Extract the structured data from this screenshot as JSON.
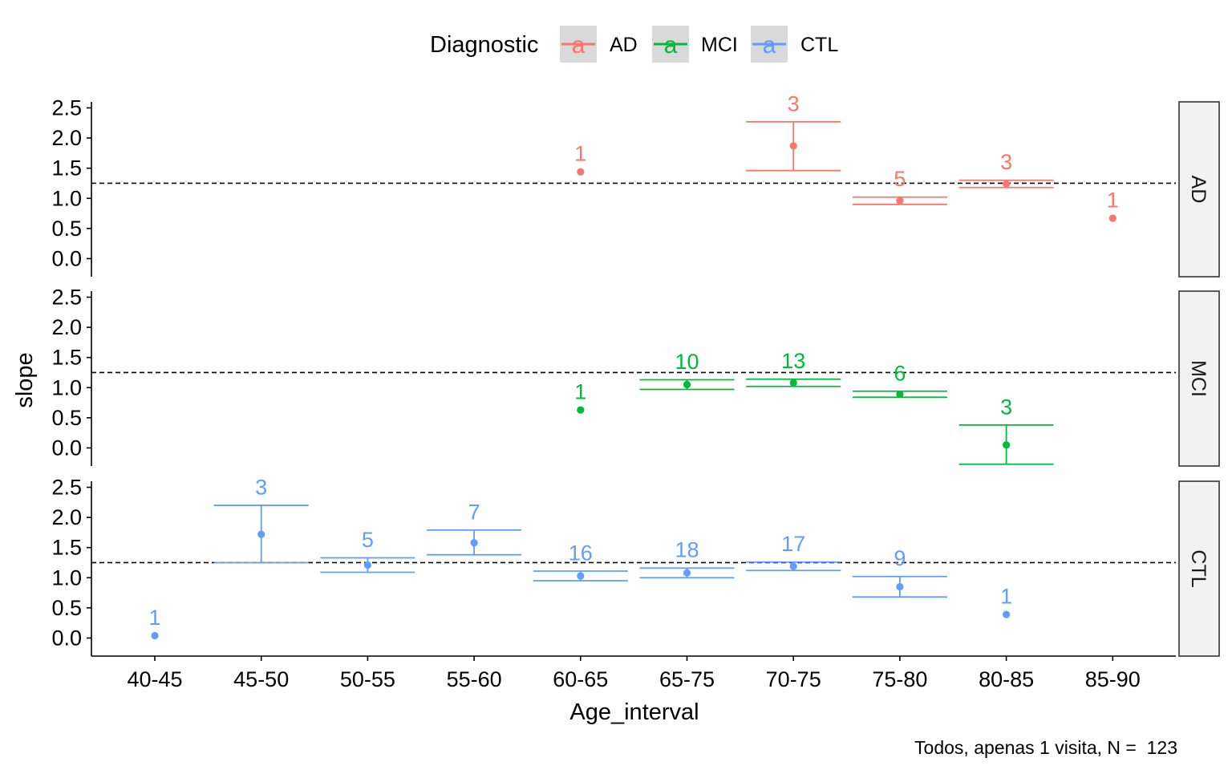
{
  "chart_data": {
    "type": "scatter",
    "title": "",
    "xlabel": "Age_interval",
    "ylabel": "slope",
    "caption": "Todos, apenas 1 visita, N =  123",
    "categories": [
      "40-45",
      "45-50",
      "50-55",
      "55-60",
      "60-65",
      "65-75",
      "70-75",
      "75-80",
      "80-85",
      "85-90"
    ],
    "ylim": [
      -0.3,
      2.6
    ],
    "yticks": [
      "0.0",
      "0.5",
      "1.0",
      "1.5",
      "2.0",
      "2.5"
    ],
    "reference_line": 1.25,
    "legend": {
      "title": "Diagnostic",
      "position": "top",
      "key_glyph": "a",
      "entries": [
        {
          "label": "AD",
          "color": "#F8766D"
        },
        {
          "label": "MCI",
          "color": "#00BA38"
        },
        {
          "label": "CTL",
          "color": "#619CFF"
        }
      ]
    },
    "panels": [
      {
        "strip": "AD",
        "color": "#F8766D",
        "points": [
          {
            "x": "60-65",
            "y": 1.44,
            "n": "1",
            "lo": null,
            "hi": null
          },
          {
            "x": "70-75",
            "y": 1.87,
            "n": "3",
            "lo": 1.46,
            "hi": 2.27
          },
          {
            "x": "75-80",
            "y": 0.96,
            "n": "5",
            "lo": 0.9,
            "hi": 1.02
          },
          {
            "x": "80-85",
            "y": 1.24,
            "n": "3",
            "lo": 1.18,
            "hi": 1.3
          },
          {
            "x": "85-90",
            "y": 0.67,
            "n": "1",
            "lo": null,
            "hi": null
          }
        ]
      },
      {
        "strip": "MCI",
        "color": "#00BA38",
        "points": [
          {
            "x": "60-65",
            "y": 0.63,
            "n": "1",
            "lo": null,
            "hi": null
          },
          {
            "x": "65-75",
            "y": 1.05,
            "n": "10",
            "lo": 0.97,
            "hi": 1.13
          },
          {
            "x": "70-75",
            "y": 1.08,
            "n": "13",
            "lo": 1.02,
            "hi": 1.14
          },
          {
            "x": "75-80",
            "y": 0.89,
            "n": "6",
            "lo": 0.84,
            "hi": 0.94
          },
          {
            "x": "80-85",
            "y": 0.05,
            "n": "3",
            "lo": -0.27,
            "hi": 0.38
          }
        ]
      },
      {
        "strip": "CTL",
        "color": "#619CFF",
        "points": [
          {
            "x": "40-45",
            "y": 0.04,
            "n": "1",
            "lo": null,
            "hi": null
          },
          {
            "x": "45-50",
            "y": 1.72,
            "n": "3",
            "lo": 1.25,
            "hi": 2.2
          },
          {
            "x": "50-55",
            "y": 1.21,
            "n": "5",
            "lo": 1.09,
            "hi": 1.33
          },
          {
            "x": "55-60",
            "y": 1.58,
            "n": "7",
            "lo": 1.38,
            "hi": 1.79
          },
          {
            "x": "60-65",
            "y": 1.03,
            "n": "16",
            "lo": 0.95,
            "hi": 1.11
          },
          {
            "x": "65-75",
            "y": 1.08,
            "n": "18",
            "lo": 1.0,
            "hi": 1.16
          },
          {
            "x": "70-75",
            "y": 1.19,
            "n": "17",
            "lo": 1.12,
            "hi": 1.26
          },
          {
            "x": "75-80",
            "y": 0.85,
            "n": "9",
            "lo": 0.68,
            "hi": 1.02
          },
          {
            "x": "80-85",
            "y": 0.39,
            "n": "1",
            "lo": null,
            "hi": null
          }
        ]
      }
    ]
  }
}
